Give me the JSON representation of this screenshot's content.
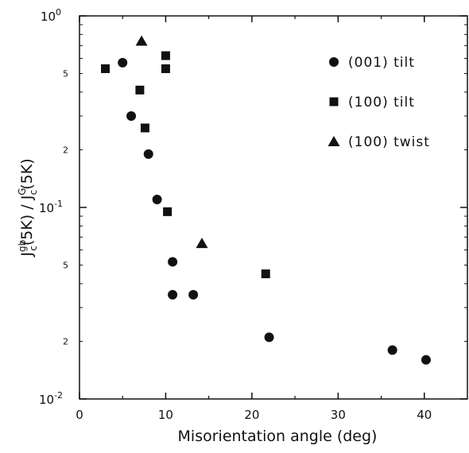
{
  "chart_data": {
    "type": "scatter",
    "title": "",
    "xlabel": "Misorientation angle (deg)",
    "ylabel": {
      "J1": "J",
      "sup1": "gb",
      "sub1": "c",
      "mid": "(5K) / J",
      "sup2": "G",
      "sub2": "c",
      "end": "(5K)"
    },
    "xlim": [
      0,
      45
    ],
    "ylim": [
      0.01,
      1
    ],
    "y_scale": "log",
    "grid": false,
    "legend_position": "top-right",
    "x_ticks": [
      {
        "value": 0,
        "label": "0"
      },
      {
        "value": 10,
        "label": "10"
      },
      {
        "value": 20,
        "label": "20"
      },
      {
        "value": 30,
        "label": "30"
      },
      {
        "value": 40,
        "label": "40"
      }
    ],
    "y_major_ticks": [
      {
        "value": 1,
        "base": "10",
        "exp": "0"
      },
      {
        "value": 0.1,
        "base": "10",
        "exp": "-1"
      },
      {
        "value": 0.01,
        "base": "10",
        "exp": "-2"
      }
    ],
    "y_minor_ticks": [
      {
        "value": 0.5,
        "label": "5"
      },
      {
        "value": 0.2,
        "label": "2"
      },
      {
        "value": 0.05,
        "label": "5"
      },
      {
        "value": 0.02,
        "label": "2"
      }
    ],
    "series": [
      {
        "name": "(001) tilt",
        "marker": "circle",
        "points": [
          {
            "x": 5,
            "y": 0.57
          },
          {
            "x": 6,
            "y": 0.3
          },
          {
            "x": 8,
            "y": 0.19
          },
          {
            "x": 9,
            "y": 0.11
          },
          {
            "x": 10.8,
            "y": 0.052
          },
          {
            "x": 10.8,
            "y": 0.035
          },
          {
            "x": 13.2,
            "y": 0.035
          },
          {
            "x": 22,
            "y": 0.021
          },
          {
            "x": 36.3,
            "y": 0.018
          },
          {
            "x": 40.2,
            "y": 0.016
          }
        ]
      },
      {
        "name": "(100) tilt",
        "marker": "square",
        "points": [
          {
            "x": 3,
            "y": 0.53
          },
          {
            "x": 7,
            "y": 0.41
          },
          {
            "x": 7.6,
            "y": 0.26
          },
          {
            "x": 10,
            "y": 0.62
          },
          {
            "x": 10,
            "y": 0.53
          },
          {
            "x": 10.2,
            "y": 0.095
          },
          {
            "x": 21.6,
            "y": 0.045
          }
        ]
      },
      {
        "name": "(100) twist",
        "marker": "triangle",
        "points": [
          {
            "x": 7.2,
            "y": 0.74
          },
          {
            "x": 14.2,
            "y": 0.065
          }
        ]
      }
    ]
  }
}
